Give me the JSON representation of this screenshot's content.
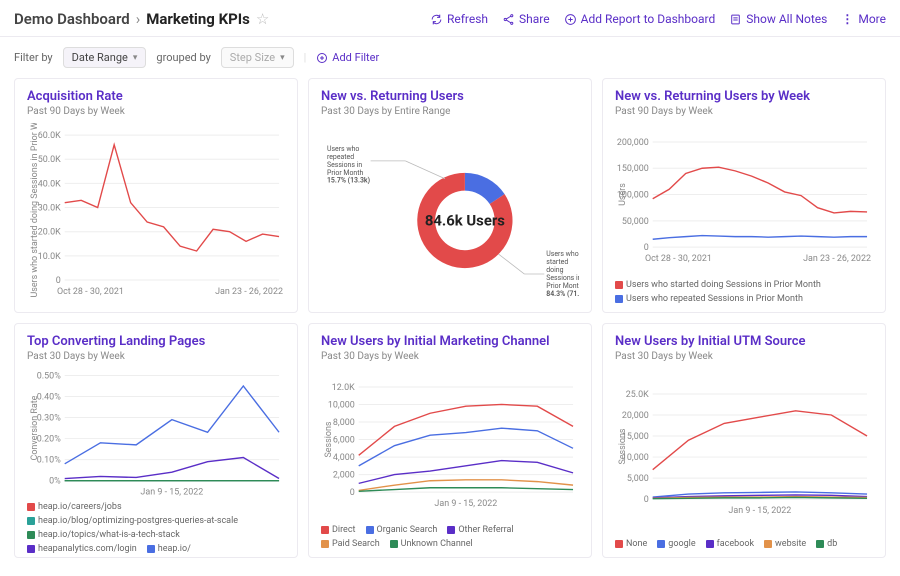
{
  "header": {
    "crumb_root": "Demo Dashboard",
    "crumb_sep": "›",
    "crumb_current": "Marketing KPIs",
    "actions": {
      "refresh": "Refresh",
      "share": "Share",
      "add_report": "Add Report to Dashboard",
      "show_notes": "Show All Notes",
      "more": "More"
    }
  },
  "filterbar": {
    "filter_by": "Filter by",
    "date_range": "Date Range",
    "grouped_by": "grouped by",
    "step_size": "Step Size",
    "add_filter": "Add Filter"
  },
  "colors": {
    "purple": "#5a2ec7",
    "red": "#e24a4a",
    "blue": "#4a6ee2",
    "green": "#2e8b57",
    "orange": "#e2924a",
    "teal": "#2aa198",
    "grid": "#eeeeee",
    "axis": "#888888"
  },
  "cards": [
    {
      "title": "Acquisition Rate",
      "sub": "Past 90 Days by Week",
      "type": "line",
      "y_label": "Users who started doing Sessions in Prior We",
      "y_ticks": [
        "0",
        "10.0K",
        "20.0K",
        "30.0K",
        "40.0K",
        "50.0K",
        "60.0K"
      ],
      "y_max": 60,
      "x_ticks": [
        "Oct 28 - 30, 2021",
        "Jan 23 - 26, 2022"
      ],
      "series": [
        {
          "color": "#e24a4a",
          "values": [
            32,
            33,
            30,
            56,
            32,
            24,
            22,
            14,
            12,
            21,
            20,
            16,
            19,
            18
          ]
        }
      ]
    },
    {
      "title": "New vs. Returning Users",
      "sub": "Past 30 Days by Entire Range",
      "type": "donut",
      "center": "84.6k Users",
      "slices": [
        {
          "label": "Users who repeated Sessions in Prior Month",
          "pct": 15.7,
          "count": "13.3k",
          "color": "#4a6ee2"
        },
        {
          "label": "Users who started doing Sessions in Prior Month",
          "pct": 84.3,
          "count": "71.3k",
          "color": "#e24a4a"
        }
      ]
    },
    {
      "title": "New vs. Returning Users by Week",
      "sub": "Past 90 Days by Week",
      "type": "line",
      "y_label": "Users",
      "y_ticks": [
        "0",
        "50,000",
        "100,000",
        "150,000",
        "200,000"
      ],
      "y_max": 200,
      "x_ticks": [
        "Oct 28 - 30, 2021",
        "Jan 23 - 26, 2022"
      ],
      "series": [
        {
          "color": "#e24a4a",
          "values": [
            92,
            110,
            140,
            150,
            152,
            145,
            135,
            122,
            105,
            98,
            75,
            65,
            68,
            67
          ]
        },
        {
          "color": "#4a6ee2",
          "values": [
            15,
            18,
            20,
            22,
            21,
            20,
            20,
            19,
            20,
            21,
            20,
            19,
            20,
            20
          ]
        }
      ],
      "legend": [
        {
          "color": "#e24a4a",
          "label": "Users who started doing Sessions in Prior Month"
        },
        {
          "color": "#4a6ee2",
          "label": "Users who repeated Sessions in Prior Month"
        }
      ]
    },
    {
      "title": "Top Converting Landing Pages",
      "sub": "Past 30 Days by Week",
      "type": "line",
      "y_label": "Conversion Rate",
      "y_ticks": [
        "0%",
        "0.10%",
        "0.20%",
        "0.30%",
        "0.40%",
        "0.50%"
      ],
      "y_max": 0.5,
      "x_ticks": [
        "Jan 9 - 15, 2022"
      ],
      "series": [
        {
          "color": "#4a6ee2",
          "values": [
            0.08,
            0.18,
            0.17,
            0.29,
            0.23,
            0.45,
            0.23
          ]
        },
        {
          "color": "#5a2ec7",
          "values": [
            0.01,
            0.02,
            0.015,
            0.04,
            0.09,
            0.11,
            0.01
          ]
        },
        {
          "color": "#e24a4a",
          "values": [
            0,
            0,
            0,
            0,
            0,
            0,
            0
          ]
        },
        {
          "color": "#2aa198",
          "values": [
            0,
            0,
            0,
            0,
            0,
            0,
            0
          ]
        },
        {
          "color": "#2e8b57",
          "values": [
            0,
            0,
            0,
            0,
            0,
            0,
            0
          ]
        }
      ],
      "legend": [
        {
          "color": "#e24a4a",
          "label": "heap.io/careers/jobs"
        },
        {
          "color": "#2aa198",
          "label": "heap.io/blog/optimizing-postgres-queries-at-scale"
        },
        {
          "color": "#2e8b57",
          "label": "heap.io/topics/what-is-a-tech-stack"
        },
        {
          "color": "#5a2ec7",
          "label": "heapanalytics.com/login"
        },
        {
          "color": "#4a6ee2",
          "label": "heap.io/"
        }
      ]
    },
    {
      "title": "New Users by Initial Marketing Channel",
      "sub": "Past 30 Days by Week",
      "type": "line",
      "y_label": "Sessions",
      "y_ticks": [
        "0",
        "2,000",
        "4,000",
        "6,000",
        "8,000",
        "10,000",
        "12.0K"
      ],
      "y_max": 12,
      "x_ticks": [
        "Jan 9 - 15, 2022"
      ],
      "series": [
        {
          "color": "#e24a4a",
          "values": [
            4.2,
            7.5,
            9.0,
            9.8,
            10.0,
            9.8,
            7.5
          ]
        },
        {
          "color": "#4a6ee2",
          "values": [
            3.0,
            5.3,
            6.5,
            6.8,
            7.3,
            7.0,
            5.0
          ]
        },
        {
          "color": "#5a2ec7",
          "values": [
            1.0,
            2.0,
            2.4,
            3.0,
            3.6,
            3.4,
            2.2
          ]
        },
        {
          "color": "#e2924a",
          "values": [
            0.2,
            0.8,
            1.3,
            1.4,
            1.4,
            1.2,
            0.8
          ]
        },
        {
          "color": "#2e8b57",
          "values": [
            0.1,
            0.3,
            0.5,
            0.5,
            0.5,
            0.4,
            0.3
          ]
        }
      ],
      "legend": [
        {
          "color": "#e24a4a",
          "label": "Direct"
        },
        {
          "color": "#4a6ee2",
          "label": "Organic Search"
        },
        {
          "color": "#5a2ec7",
          "label": "Other Referral"
        },
        {
          "color": "#e2924a",
          "label": "Paid Search"
        },
        {
          "color": "#2e8b57",
          "label": "Unknown Channel"
        }
      ]
    },
    {
      "title": "New Users by Initial UTM Source",
      "sub": "Past 30 Days by Week",
      "type": "line",
      "y_label": "Sessions",
      "y_ticks": [
        "0",
        "5,000",
        "10,000",
        "15,000",
        "20,000",
        "25.0K"
      ],
      "y_max": 25,
      "x_ticks": [
        "Jan 9 - 15, 2022"
      ],
      "series": [
        {
          "color": "#e24a4a",
          "values": [
            7,
            14,
            18,
            19.5,
            21,
            20,
            15
          ]
        },
        {
          "color": "#4a6ee2",
          "values": [
            0.5,
            1.2,
            1.5,
            1.6,
            1.7,
            1.5,
            1.2
          ]
        },
        {
          "color": "#5a2ec7",
          "values": [
            0.3,
            0.6,
            0.8,
            0.9,
            1.0,
            0.9,
            0.6
          ]
        },
        {
          "color": "#e2924a",
          "values": [
            0.2,
            0.4,
            0.5,
            0.5,
            0.6,
            0.5,
            0.4
          ]
        },
        {
          "color": "#2e8b57",
          "values": [
            0.1,
            0.2,
            0.3,
            0.3,
            0.4,
            0.3,
            0.2
          ]
        }
      ],
      "legend": [
        {
          "color": "#e24a4a",
          "label": "None"
        },
        {
          "color": "#4a6ee2",
          "label": "google"
        },
        {
          "color": "#5a2ec7",
          "label": "facebook"
        },
        {
          "color": "#e2924a",
          "label": "website"
        },
        {
          "color": "#2e8b57",
          "label": "db"
        }
      ]
    }
  ]
}
